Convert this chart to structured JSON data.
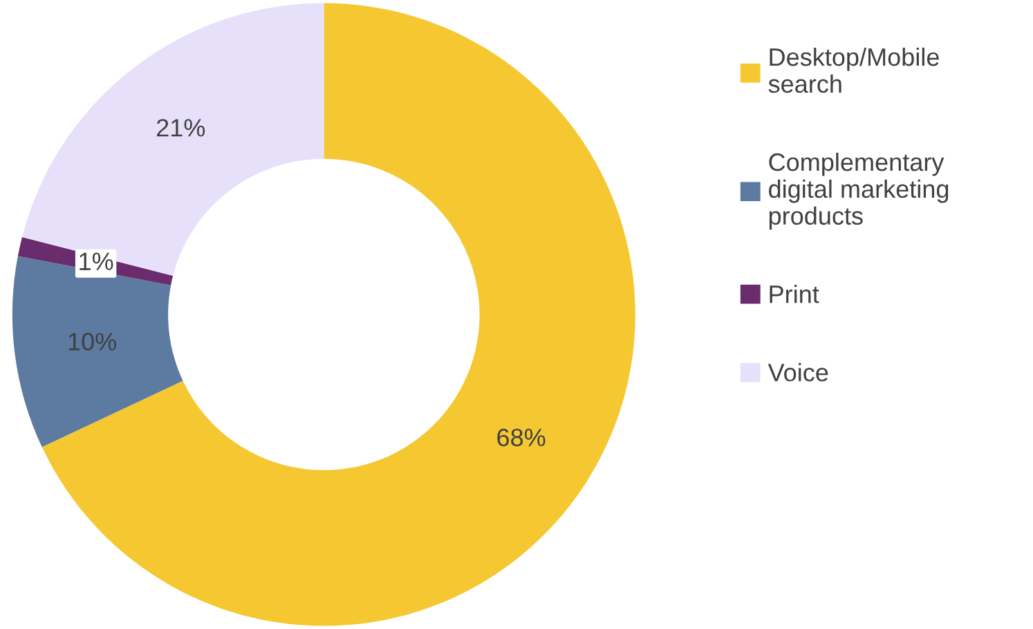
{
  "chart_data": {
    "type": "donut",
    "categories": [
      "Desktop/Mobile\nsearch",
      "Complementary\ndigital marketing\nproducts",
      "Print",
      "Voice"
    ],
    "values": [
      68,
      10,
      1,
      21
    ],
    "value_labels": [
      "68%",
      "10%",
      "1%",
      "21%"
    ],
    "colors": [
      "#f5c832",
      "#5d7aa1",
      "#6b2c6e",
      "#e6e0fa"
    ],
    "legend": "right"
  }
}
